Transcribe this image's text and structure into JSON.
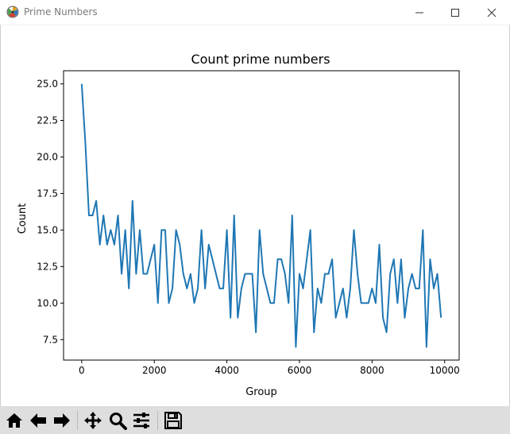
{
  "window": {
    "title": "Prime Numbers",
    "icon": "matplotlib-icon"
  },
  "window_controls": [
    "minimize-icon",
    "maximize-icon",
    "close-icon"
  ],
  "toolbar": {
    "buttons": [
      {
        "name": "home",
        "icon": "home-icon"
      },
      {
        "name": "back",
        "icon": "arrow-left-icon"
      },
      {
        "name": "forward",
        "icon": "arrow-right-icon"
      },
      {
        "name": "pan",
        "icon": "move-icon"
      },
      {
        "name": "zoom",
        "icon": "magnifier-icon"
      },
      {
        "name": "configure-subplots",
        "icon": "sliders-icon"
      },
      {
        "name": "save",
        "icon": "floppy-disk-icon"
      }
    ]
  },
  "chart_data": {
    "type": "line",
    "title": "Count prime numbers",
    "xlabel": "Group",
    "ylabel": "Count",
    "xlim": [
      -500,
      10400
    ],
    "ylim": [
      6.1,
      25.9
    ],
    "xticks": [
      0,
      2000,
      4000,
      6000,
      8000,
      10000
    ],
    "yticks": [
      7.5,
      10.0,
      12.5,
      15.0,
      17.5,
      20.0,
      22.5,
      25.0
    ],
    "grid": false,
    "color": "#1f77b4",
    "series": [
      {
        "x": [
          0,
          100,
          200,
          300,
          400,
          500,
          600,
          700,
          800,
          900,
          1000,
          1100,
          1200,
          1300,
          1400,
          1500,
          1600,
          1700,
          1800,
          1900,
          2000,
          2100,
          2200,
          2300,
          2400,
          2500,
          2600,
          2700,
          2800,
          2900,
          3000,
          3100,
          3200,
          3300,
          3400,
          3500,
          3600,
          3700,
          3800,
          3900,
          4000,
          4100,
          4200,
          4300,
          4400,
          4500,
          4600,
          4700,
          4800,
          4900,
          5000,
          5100,
          5200,
          5300,
          5400,
          5500,
          5600,
          5700,
          5800,
          5900,
          6000,
          6100,
          6200,
          6300,
          6400,
          6500,
          6600,
          6700,
          6800,
          6900,
          7000,
          7100,
          7200,
          7300,
          7400,
          7500,
          7600,
          7700,
          7800,
          7900,
          8000,
          8100,
          8200,
          8300,
          8400,
          8500,
          8600,
          8700,
          8800,
          8900,
          9000,
          9100,
          9200,
          9300,
          9400,
          9500,
          9600,
          9700,
          9800,
          9900
        ],
        "values": [
          25,
          21,
          16,
          16,
          17,
          14,
          16,
          14,
          15,
          14,
          16,
          12,
          15,
          11,
          17,
          12,
          15,
          12,
          12,
          13,
          14,
          10,
          15,
          15,
          10,
          11,
          15,
          14,
          12,
          11,
          12,
          10,
          11,
          15,
          11,
          14,
          13,
          12,
          11,
          11,
          15,
          9,
          16,
          9,
          11,
          12,
          12,
          12,
          8,
          15,
          12,
          11,
          10,
          10,
          13,
          13,
          12,
          10,
          16,
          7,
          12,
          11,
          13,
          15,
          8,
          11,
          10,
          12,
          12,
          13,
          9,
          10,
          11,
          9,
          11,
          15,
          12,
          10,
          10,
          10,
          11,
          10,
          14,
          9,
          8,
          12,
          13,
          10,
          13,
          9,
          11,
          12,
          11,
          11,
          15,
          7,
          13,
          11,
          12,
          9
        ]
      }
    ]
  }
}
